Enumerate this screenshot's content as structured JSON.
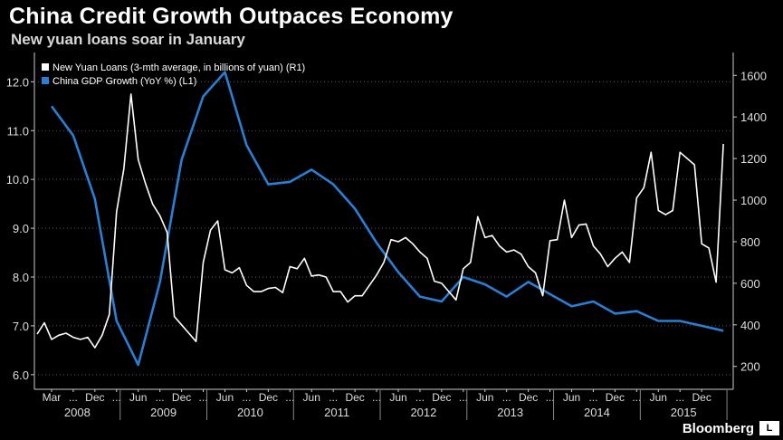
{
  "title": "China Credit Growth Outpaces Economy",
  "subtitle": "New yuan loans soar in January",
  "brand": "Bloomberg",
  "brand_icon": "L",
  "colors": {
    "background": "#000000",
    "loans": "#ffffff",
    "gdp": "#2a7fd4",
    "grid": "#555555",
    "axis": "#cccccc"
  },
  "chart_data": {
    "type": "line",
    "left_axis": {
      "ticks": [
        "6.0",
        "7.0",
        "8.0",
        "9.0",
        "10.0",
        "11.0",
        "12.0"
      ],
      "ylim": [
        5.7,
        12.6
      ]
    },
    "right_axis": {
      "ticks": [
        "200",
        "400",
        "600",
        "800",
        "1000",
        "1200",
        "1400",
        "1600"
      ],
      "ylim": [
        90,
        1710
      ]
    },
    "x_ticks": [
      "Mar",
      "...",
      "Dec",
      "...",
      "Jun",
      "...",
      "Dec",
      "...",
      "Jun",
      "...",
      "Dec",
      "...",
      "Jun",
      "...",
      "Dec",
      "...",
      "Jun",
      "...",
      "Dec",
      "...",
      "Jun",
      "...",
      "Dec",
      "...",
      "Jun",
      "...",
      "Dec",
      "...",
      "Jun",
      "...",
      "Dec"
    ],
    "years": [
      "2008",
      "2009",
      "2010",
      "2011",
      "2012",
      "2013",
      "2014",
      "2015"
    ],
    "legend": [
      "New Yuan Loans (3-mth average, in billions of yuan) (R1)",
      "China GDP Growth (YoY %) (L1)"
    ],
    "series": [
      {
        "name": "New Yuan Loans (3-mth average, in billions of yuan) (R1)",
        "axis": "right",
        "start": "2008-01",
        "values": [
          355,
          410,
          330,
          350,
          360,
          340,
          330,
          340,
          290,
          350,
          450,
          945,
          1150,
          1510,
          1195,
          1080,
          980,
          925,
          845,
          440,
          400,
          360,
          320,
          700,
          855,
          900,
          665,
          650,
          675,
          590,
          560,
          560,
          575,
          580,
          555,
          680,
          670,
          720,
          635,
          640,
          630,
          560,
          560,
          510,
          540,
          540,
          590,
          640,
          700,
          810,
          800,
          820,
          790,
          750,
          720,
          610,
          600,
          560,
          520,
          670,
          700,
          920,
          820,
          830,
          780,
          750,
          760,
          740,
          680,
          650,
          540,
          805,
          810,
          1000,
          820,
          880,
          885,
          780,
          740,
          680,
          720,
          750,
          700,
          1010,
          1060,
          1230,
          950,
          930,
          950,
          1230,
          1200,
          1170,
          790,
          770,
          605,
          1270
        ]
      },
      {
        "name": "China GDP Growth (YoY %) (L1)",
        "axis": "left",
        "points": [
          {
            "date": "2008-03",
            "value": 11.5
          },
          {
            "date": "2008-06",
            "value": 10.9
          },
          {
            "date": "2008-09",
            "value": 9.6
          },
          {
            "date": "2008-12",
            "value": 7.1
          },
          {
            "date": "2009-03",
            "value": 6.2
          },
          {
            "date": "2009-06",
            "value": 7.9
          },
          {
            "date": "2009-09",
            "value": 10.4
          },
          {
            "date": "2009-12",
            "value": 11.7
          },
          {
            "date": "2010-03",
            "value": 12.2
          },
          {
            "date": "2010-06",
            "value": 10.7
          },
          {
            "date": "2010-09",
            "value": 9.9
          },
          {
            "date": "2010-12",
            "value": 9.95
          },
          {
            "date": "2011-03",
            "value": 10.2
          },
          {
            "date": "2011-06",
            "value": 9.9
          },
          {
            "date": "2011-09",
            "value": 9.4
          },
          {
            "date": "2011-12",
            "value": 8.7
          },
          {
            "date": "2012-03",
            "value": 8.1
          },
          {
            "date": "2012-06",
            "value": 7.6
          },
          {
            "date": "2012-09",
            "value": 7.5
          },
          {
            "date": "2012-12",
            "value": 8.0
          },
          {
            "date": "2013-03",
            "value": 7.85
          },
          {
            "date": "2013-06",
            "value": 7.6
          },
          {
            "date": "2013-09",
            "value": 7.9
          },
          {
            "date": "2013-12",
            "value": 7.65
          },
          {
            "date": "2014-03",
            "value": 7.4
          },
          {
            "date": "2014-06",
            "value": 7.5
          },
          {
            "date": "2014-09",
            "value": 7.25
          },
          {
            "date": "2014-12",
            "value": 7.3
          },
          {
            "date": "2015-03",
            "value": 7.1
          },
          {
            "date": "2015-06",
            "value": 7.1
          },
          {
            "date": "2015-09",
            "value": 7.0
          },
          {
            "date": "2015-12",
            "value": 6.9
          }
        ]
      }
    ]
  }
}
